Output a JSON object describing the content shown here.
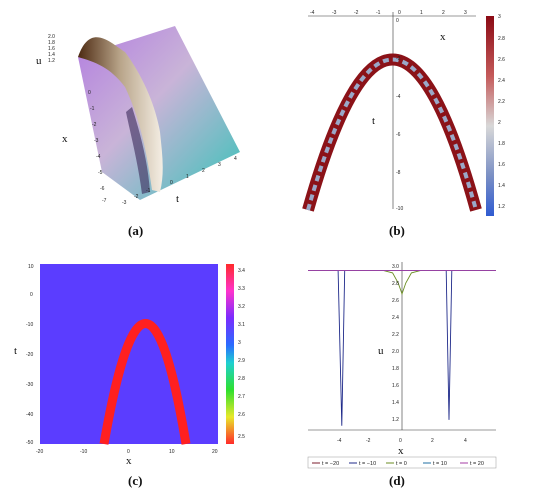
{
  "panels": {
    "a": {
      "caption": "(a)",
      "xlabel": "x",
      "ylabel": "u",
      "tlabel": "t",
      "t_ticks": [
        "-3",
        "-2",
        "-1",
        "0",
        "1",
        "2",
        "3",
        "4"
      ],
      "x_ticks": [
        "0",
        "-1",
        "-2",
        "-3",
        "-4",
        "-5",
        "-6",
        "-7"
      ],
      "u_ticks": [
        "1.2",
        "1.4",
        "1.6",
        "1.8",
        "2.0"
      ]
    },
    "b": {
      "caption": "(b)",
      "xlabel": "x",
      "ylabel": "t",
      "x_ticks": [
        "-4",
        "-3",
        "-2",
        "-1",
        "0",
        "1",
        "2",
        "3"
      ],
      "y_ticks": [
        "0",
        "-2",
        "-4",
        "-6",
        "-8",
        "-10"
      ],
      "cb_ticks": [
        "3",
        "2.8",
        "2.6",
        "2.4",
        "2.2",
        "2",
        "1.8",
        "1.6",
        "1.4",
        "1.2"
      ]
    },
    "c": {
      "caption": "(c)",
      "xlabel": "x",
      "ylabel": "t",
      "x_ticks": [
        "-20",
        "-10",
        "0",
        "10",
        "20"
      ],
      "y_ticks": [
        "10",
        "0",
        "-10",
        "-20",
        "-30",
        "-40",
        "-50"
      ],
      "cb_ticks": [
        "3.4",
        "3.3",
        "3.2",
        "3.1",
        "3",
        "2.9",
        "2.8",
        "2.7",
        "2.6",
        "2.5"
      ]
    },
    "d": {
      "caption": "(d)",
      "xlabel": "x",
      "ylabel": "u",
      "x_ticks": [
        "-4",
        "-2",
        "0",
        "2",
        "4"
      ],
      "y_ticks": [
        "3.0",
        "2.8",
        "2.6",
        "2.4",
        "2.2",
        "2.0",
        "1.8",
        "1.6",
        "1.4",
        "1.2"
      ],
      "legend": [
        "t = −20",
        "t = −10",
        "t = 0",
        "t = 10",
        "t = 20"
      ]
    }
  },
  "chart_data": [
    {
      "type": "surface",
      "panel": "a",
      "xlabel": "x",
      "ylabel": "t",
      "zlabel": "u"
    },
    {
      "type": "contour",
      "panel": "b",
      "xlabel": "x",
      "ylabel": "t",
      "xlim": [
        -4.5,
        3.8
      ],
      "ylim": [
        -10,
        0.5
      ],
      "colorbar_range": [
        1.1,
        3.0
      ]
    },
    {
      "type": "heatmap",
      "panel": "c",
      "xlabel": "x",
      "ylabel": "t",
      "xlim": [
        -20,
        20
      ],
      "ylim": [
        -50,
        10
      ],
      "colorbar_range": [
        2.5,
        3.4
      ]
    },
    {
      "type": "line",
      "panel": "d",
      "xlabel": "x",
      "ylabel": "u",
      "xlim": [
        -5,
        5
      ],
      "ylim": [
        1.1,
        3.1
      ],
      "series": [
        {
          "name": "t = −20",
          "color": "#7b1c2e",
          "x": [
            -5,
            5
          ],
          "y": [
            3.0,
            3.0
          ]
        },
        {
          "name": "t = −10",
          "color": "#1f2a8a",
          "x": [
            -5,
            -3.4,
            -3.2,
            -3.05,
            2.35,
            2.5,
            2.65,
            5
          ],
          "y": [
            3.0,
            3.0,
            1.15,
            3.0,
            3.0,
            1.22,
            3.0,
            3.0
          ]
        },
        {
          "name": "t = 0",
          "color": "#6b8e23",
          "x": [
            -5,
            -1.0,
            -0.5,
            -0.2,
            0,
            0.2,
            0.5,
            1.0,
            5
          ],
          "y": [
            3.0,
            3.0,
            2.97,
            2.85,
            2.72,
            2.85,
            2.97,
            3.0,
            3.0
          ]
        },
        {
          "name": "t = 10",
          "color": "#1f6fa3",
          "x": [
            -5,
            5
          ],
          "y": [
            3.0,
            3.0
          ]
        },
        {
          "name": "t = 20",
          "color": "#a63ca6",
          "x": [
            -5,
            5
          ],
          "y": [
            3.0,
            3.0
          ]
        }
      ]
    }
  ]
}
